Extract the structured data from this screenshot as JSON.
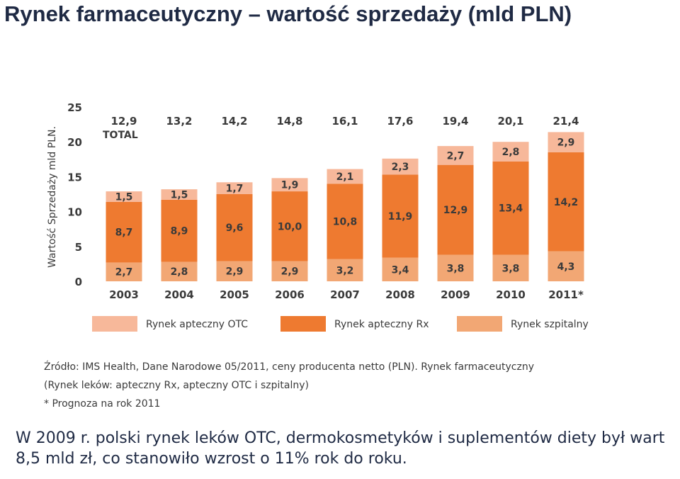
{
  "slide": {
    "title": "Rynek farmaceutyczny – wartość sprzedaży (mld PLN)",
    "source_lines": [
      "Źródło: IMS Health, Dane Narodowe 05/2011, ceny producenta netto (PLN). Rynek farmaceutyczny",
      "(Rynek leków: apteczny Rx, apteczny OTC i szpitalny)",
      "* Prognoza na rok 2011"
    ],
    "caption": "W 2009 r. polski rynek leków OTC, dermokosmetyków i suplementów diety był wart 8,5 mld zł, co stanowiło wzrost o 11% rok do roku."
  },
  "colors": {
    "otc": "#f7b89a",
    "rx": "#ee7a30",
    "hosp": "#f2a774",
    "text": "#3a3a3a",
    "title": "#1f2a44"
  },
  "chart_data": {
    "type": "bar",
    "stacked": true,
    "title": "",
    "xlabel": "",
    "ylabel": "Wartość Sprzedaży mld PLN.",
    "ylim": [
      0,
      25
    ],
    "yticks": [
      "0",
      "5",
      "10",
      "15",
      "20",
      "25"
    ],
    "categories": [
      "2003",
      "2004",
      "2005",
      "2006",
      "2007",
      "2008",
      "2009",
      "2010",
      "2011*"
    ],
    "total_label": "TOTAL",
    "totals": [
      12.9,
      13.2,
      14.2,
      14.8,
      16.1,
      17.6,
      19.4,
      20.1,
      21.4
    ],
    "total_labels": [
      "12,9",
      "13,2",
      "14,2",
      "14,8",
      "16,1",
      "17,6",
      "19,4",
      "20,1",
      "21,4"
    ],
    "series": [
      {
        "name": "Rynek szpitalny",
        "color_key": "hosp",
        "values": [
          2.7,
          2.8,
          2.9,
          2.9,
          3.2,
          3.4,
          3.8,
          3.8,
          4.3
        ],
        "labels": [
          "2,7",
          "2,8",
          "2,9",
          "2,9",
          "3,2",
          "3,4",
          "3,8",
          "3,8",
          "4,3"
        ]
      },
      {
        "name": "Rynek apteczny Rx",
        "color_key": "rx",
        "values": [
          8.7,
          8.9,
          9.6,
          10.0,
          10.8,
          11.9,
          12.9,
          13.4,
          14.2
        ],
        "labels": [
          "8,7",
          "8,9",
          "9,6",
          "10,0",
          "10,8",
          "11,9",
          "12,9",
          "13,4",
          "14,2"
        ]
      },
      {
        "name": "Rynek apteczny OTC",
        "color_key": "otc",
        "values": [
          1.5,
          1.5,
          1.7,
          1.9,
          2.1,
          2.3,
          2.7,
          2.8,
          2.9
        ],
        "labels": [
          "1,5",
          "1,5",
          "1,7",
          "1,9",
          "2,1",
          "2,3",
          "2,7",
          "2,8",
          "2,9"
        ]
      }
    ],
    "legend": {
      "placement": "bottom",
      "order": [
        "Rynek apteczny OTC",
        "Rynek apteczny Rx",
        "Rynek szpitalny"
      ]
    }
  }
}
